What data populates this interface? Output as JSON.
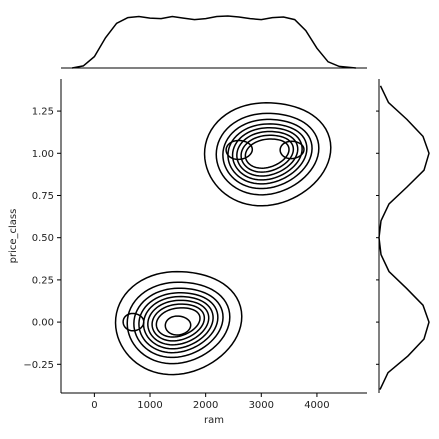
{
  "chart_data": {
    "type": "kde-jointplot",
    "xlabel": "ram",
    "ylabel": "price_class",
    "xlim": [
      -600,
      4900
    ],
    "ylim": [
      -0.42,
      1.44
    ],
    "xticks": [
      0,
      1000,
      2000,
      3000,
      4000
    ],
    "xtick_labels": [
      "0",
      "1000",
      "2000",
      "3000",
      "4000"
    ],
    "yticks": [
      -0.25,
      0.0,
      0.25,
      0.5,
      0.75,
      1.0,
      1.25
    ],
    "ytick_labels": [
      "−0.25",
      "0.00",
      "0.25",
      "0.50",
      "0.75",
      "1.00",
      "1.25"
    ],
    "clusters": [
      {
        "center_x": 1500,
        "center_y": 0.0,
        "levels": [
          {
            "rx": 1620,
            "ry": 0.33
          },
          {
            "rx": 1320,
            "ry": 0.26
          },
          {
            "rx": 1150,
            "ry": 0.22
          },
          {
            "rx": 1020,
            "ry": 0.19
          },
          {
            "rx": 900,
            "ry": 0.165
          },
          {
            "rx": 790,
            "ry": 0.14
          },
          {
            "rx": 680,
            "ry": 0.115
          },
          {
            "rx": 570,
            "ry": 0.09
          }
        ],
        "inner_peaks": [
          {
            "x": 700,
            "y": 0.0,
            "rx": 260,
            "ry": 0.055
          },
          {
            "x": 1500,
            "y": -0.02,
            "rx": 320,
            "ry": 0.06
          }
        ]
      },
      {
        "center_x": 3100,
        "center_y": 1.0,
        "levels": [
          {
            "rx": 1620,
            "ry": 0.33
          },
          {
            "rx": 1320,
            "ry": 0.26
          },
          {
            "rx": 1150,
            "ry": 0.22
          },
          {
            "rx": 1020,
            "ry": 0.19
          },
          {
            "rx": 900,
            "ry": 0.165
          },
          {
            "rx": 790,
            "ry": 0.14
          },
          {
            "rx": 680,
            "ry": 0.115
          },
          {
            "rx": 570,
            "ry": 0.09
          }
        ],
        "inner_peaks": [
          {
            "x": 2600,
            "y": 1.02,
            "rx": 330,
            "ry": 0.06
          },
          {
            "x": 3550,
            "y": 1.02,
            "rx": 300,
            "ry": 0.055
          }
        ]
      }
    ],
    "x_marginal": {
      "x": [
        -400,
        -200,
        0,
        200,
        400,
        600,
        800,
        1000,
        1200,
        1400,
        1600,
        1800,
        2000,
        2200,
        2400,
        2600,
        2800,
        3000,
        3200,
        3400,
        3600,
        3800,
        4000,
        4200,
        4400,
        4700
      ],
      "density": [
        0.0,
        0.04,
        0.22,
        0.58,
        0.86,
        0.97,
        0.99,
        0.96,
        0.95,
        0.99,
        0.96,
        0.93,
        0.95,
        0.99,
        1.0,
        0.98,
        0.95,
        0.93,
        0.97,
        0.98,
        0.93,
        0.72,
        0.38,
        0.12,
        0.03,
        0.0
      ]
    },
    "y_marginal": {
      "y": [
        -0.4,
        -0.3,
        -0.2,
        -0.1,
        0.0,
        0.1,
        0.2,
        0.3,
        0.4,
        0.5,
        0.6,
        0.7,
        0.8,
        0.9,
        1.0,
        1.1,
        1.2,
        1.3,
        1.4
      ],
      "density": [
        0.02,
        0.18,
        0.58,
        0.9,
        1.0,
        0.88,
        0.55,
        0.2,
        0.04,
        0.0,
        0.04,
        0.2,
        0.56,
        0.9,
        1.0,
        0.88,
        0.56,
        0.19,
        0.03
      ]
    }
  }
}
